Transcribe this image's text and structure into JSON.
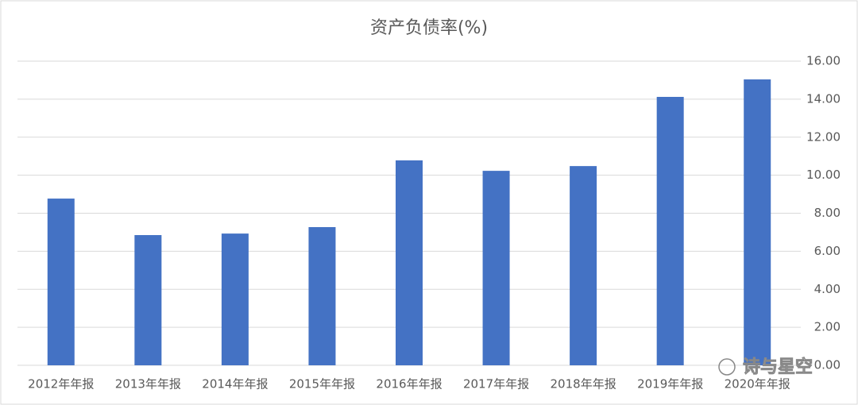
{
  "chart_data": {
    "type": "bar",
    "title": "资产负债率(%)",
    "categories": [
      "2012年年报",
      "2013年年报",
      "2014年年报",
      "2015年年报",
      "2016年年报",
      "2017年年报",
      "2018年年报",
      "2019年年报",
      "2020年年报"
    ],
    "values": [
      8.77,
      6.85,
      6.93,
      7.27,
      10.78,
      10.23,
      10.48,
      14.12,
      15.04
    ],
    "color": "#4472c4",
    "ylim": [
      0,
      16
    ],
    "yticks": [
      {
        "value": 0,
        "label": "0.00"
      },
      {
        "value": 2,
        "label": "2.00"
      },
      {
        "value": 4,
        "label": "4.00"
      },
      {
        "value": 6,
        "label": "6.00"
      },
      {
        "value": 8,
        "label": "8.00"
      },
      {
        "value": 10,
        "label": "10.00"
      },
      {
        "value": 12,
        "label": "12.00"
      },
      {
        "value": 14,
        "label": "14.00"
      },
      {
        "value": 16,
        "label": "16.00"
      }
    ],
    "grid": true,
    "watermark": "诗与星空"
  }
}
